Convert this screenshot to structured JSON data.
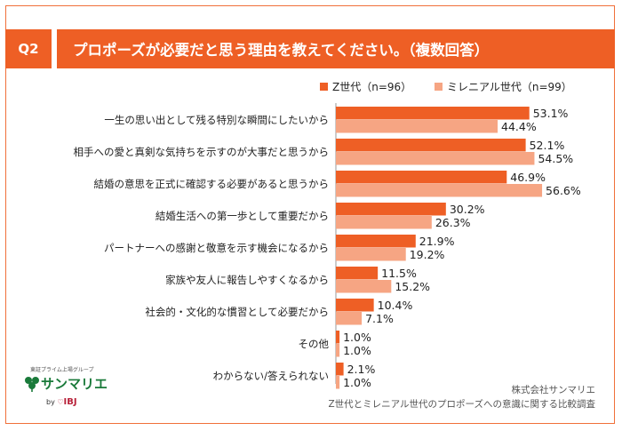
{
  "header": {
    "badge": "Q2",
    "title": "プロポーズが必要だと思う理由を教えてください。（複数回答）"
  },
  "colors": {
    "series1": "#ee5f25",
    "series2": "#f6a583",
    "accent_border": "#f0703a"
  },
  "chart_data": {
    "type": "bar",
    "orientation": "horizontal",
    "categories": [
      "一生の思い出として残る特別な瞬間にしたいから",
      "相手への愛と真剣な気持ちを示すのが大事だと思うから",
      "結婚の意思を正式に確認する必要があると思うから",
      "結婚生活への第一歩として重要だから",
      "パートナーへの感謝と敬意を示す機会になるから",
      "家族や友人に報告しやすくなるから",
      "社会的・文化的な慣習として必要だから",
      "その他",
      "わからない/答えられない"
    ],
    "series": [
      {
        "name": "Z世代（n=96）",
        "values": [
          53.1,
          52.1,
          46.9,
          30.2,
          21.9,
          11.5,
          10.4,
          1.0,
          2.1
        ]
      },
      {
        "name": "ミレニアル世代（n=99）",
        "values": [
          44.4,
          54.5,
          56.6,
          26.3,
          19.2,
          15.2,
          7.1,
          1.0,
          1.0
        ]
      }
    ],
    "value_suffix": "%",
    "legend_position": "top-right"
  },
  "footer": {
    "line1": "株式会社サンマリエ",
    "line2": "Z世代とミレニアル世代のプロポーズへの意識に関する比較調査"
  },
  "logo": {
    "tagline": "東証プライム上場グループ",
    "brand": "サンマリエ",
    "by": "by",
    "parent": "IBJ"
  }
}
